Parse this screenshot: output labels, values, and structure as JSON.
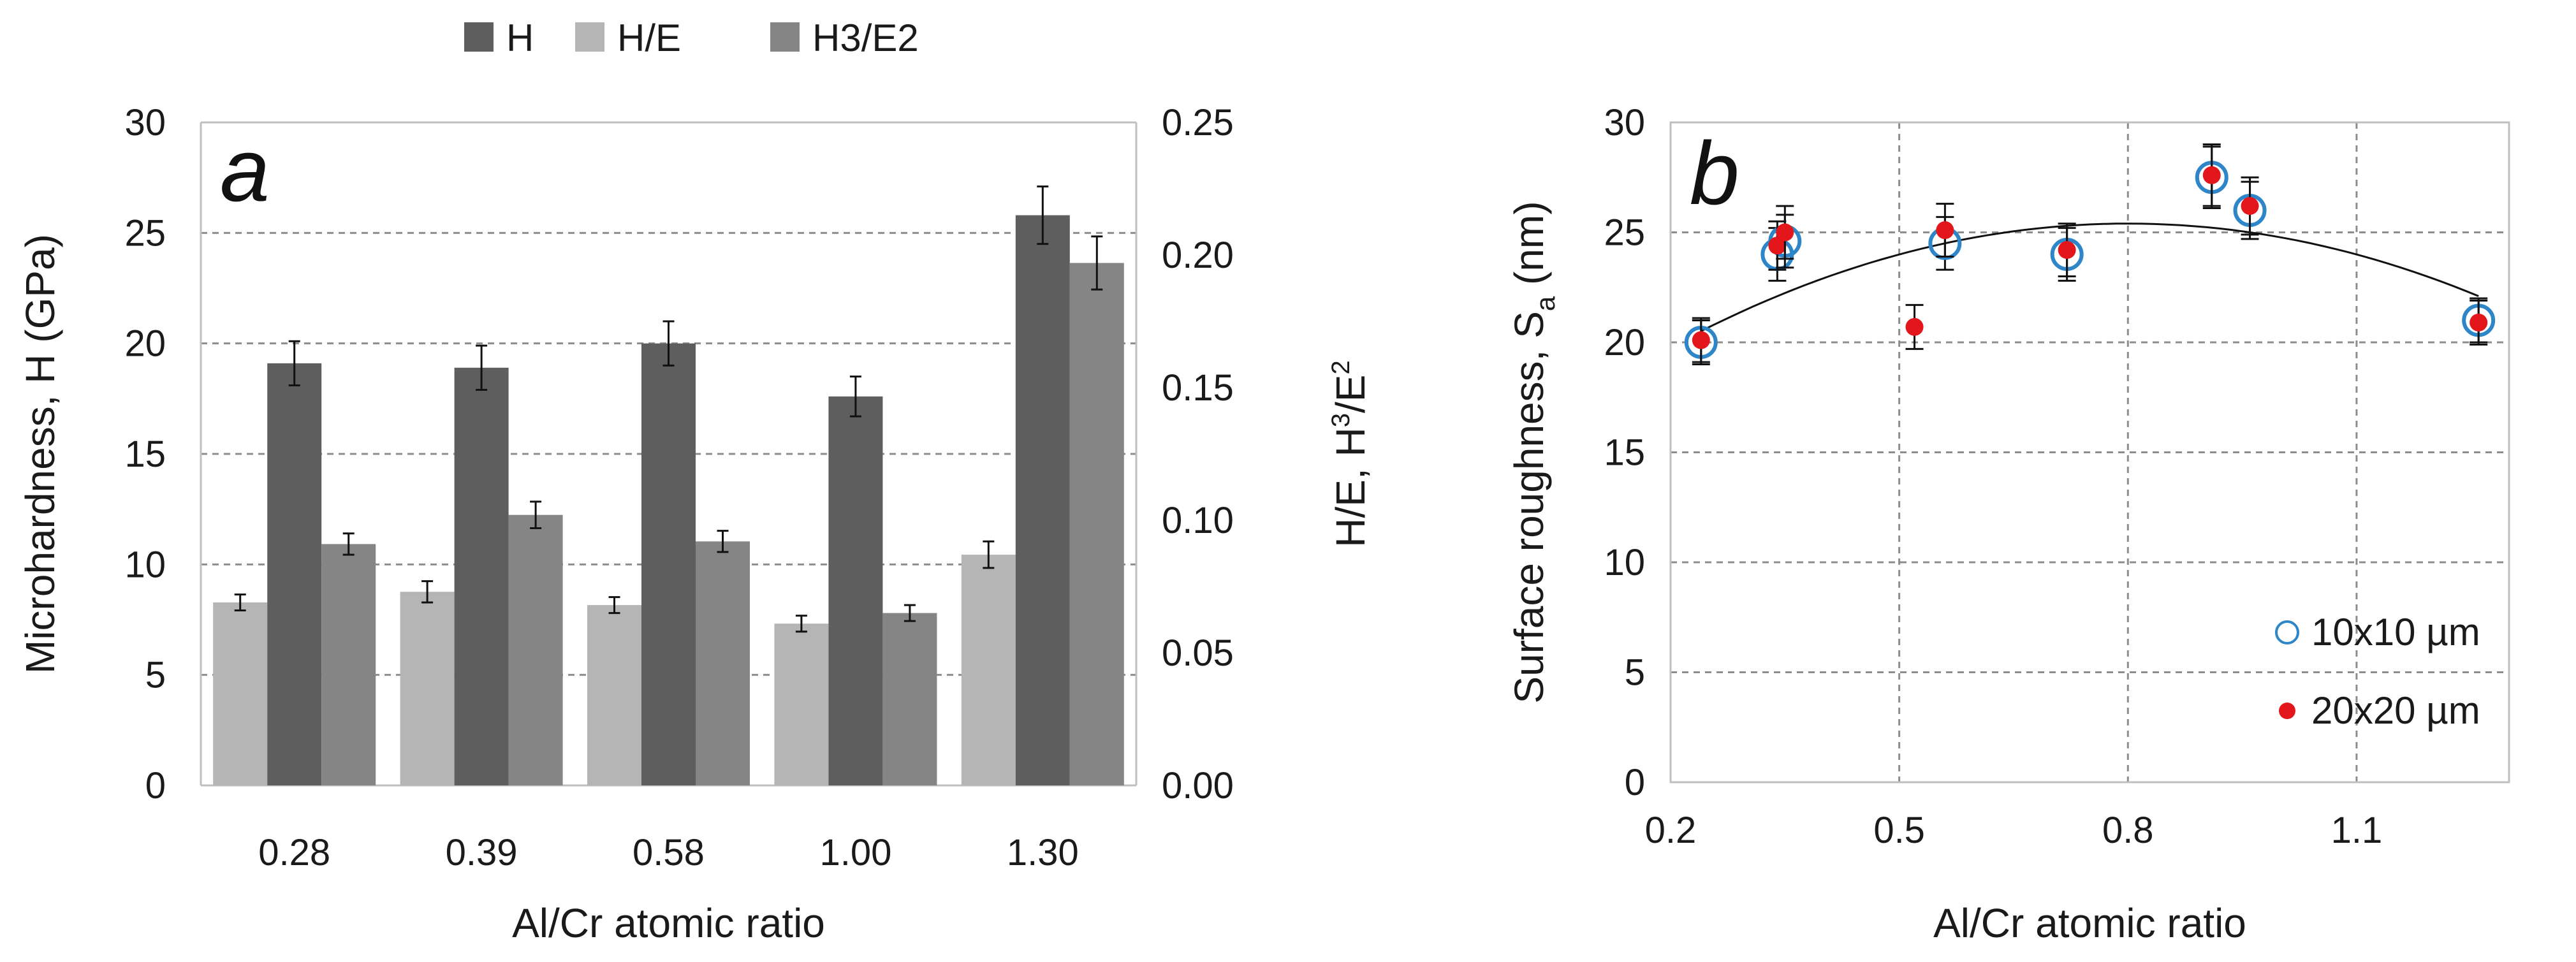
{
  "chart_data": [
    {
      "panel_label": "a",
      "type": "bar",
      "xlabel": "Al/Cr atomic ratio",
      "ylabel": "Microhardness, H (GPa)",
      "y2label_parts": [
        "H/E, H",
        "3",
        "/E",
        "2"
      ],
      "categories": [
        "0.28",
        "0.39",
        "0.58",
        "1.00",
        "1.30"
      ],
      "ylim": [
        0,
        30
      ],
      "yticks": [
        "0",
        "5",
        "10",
        "15",
        "20",
        "25",
        "30"
      ],
      "y2lim": [
        0,
        0.25
      ],
      "y2ticks": [
        "0.00",
        "0.05",
        "0.10",
        "0.15",
        "0.20",
        "0.25"
      ],
      "series": [
        {
          "name": "H/E",
          "axis": "right",
          "color": "#b5b5b5",
          "values": [
            0.069,
            0.073,
            0.068,
            0.061,
            0.087
          ],
          "errors": [
            0.003,
            0.004,
            0.003,
            0.003,
            0.005
          ]
        },
        {
          "name": "H",
          "axis": "left",
          "color": "#5e5e5e",
          "values": [
            19.1,
            18.9,
            20.0,
            17.6,
            25.8
          ],
          "errors": [
            1.0,
            1.0,
            1.0,
            0.9,
            1.3
          ]
        },
        {
          "name": "H3/E2",
          "axis": "right",
          "color": "#858585",
          "values": [
            0.091,
            0.102,
            0.092,
            0.065,
            0.197
          ],
          "errors": [
            0.004,
            0.005,
            0.004,
            0.003,
            0.01
          ]
        }
      ],
      "legend_order": [
        "H",
        "H/E",
        "H3/E2"
      ],
      "legend_position": "top-center"
    },
    {
      "panel_label": "b",
      "type": "scatter",
      "xlabel": "Al/Cr atomic ratio",
      "ylabel_parts": [
        "Surface roughness, S",
        "a",
        " (nm)"
      ],
      "xlim": [
        0.2,
        1.3
      ],
      "xticks": [
        0.2,
        0.5,
        0.8,
        1.1
      ],
      "xtick_labels": [
        "0.2",
        "0.5",
        "0.8",
        "1.1"
      ],
      "ylim": [
        0,
        30
      ],
      "yticks": [
        "0",
        "5",
        "10",
        "15",
        "20",
        "25",
        "30"
      ],
      "series": [
        {
          "name": "10x10 µm",
          "marker": "open-circle",
          "color": "#2e86c8",
          "x": [
            0.24,
            0.34,
            0.35,
            0.56,
            0.72,
            0.91,
            0.96,
            1.26
          ],
          "y": [
            20.0,
            24.0,
            24.6,
            24.5,
            24.0,
            27.5,
            26.0,
            21.0
          ],
          "errors": [
            1.0,
            1.2,
            1.2,
            1.2,
            1.2,
            1.4,
            1.3,
            1.0
          ]
        },
        {
          "name": "20x20 µm",
          "marker": "filled-circle",
          "color": "#e3161b",
          "x": [
            0.24,
            0.34,
            0.35,
            0.52,
            0.56,
            0.72,
            0.91,
            0.96,
            1.26
          ],
          "y": [
            20.1,
            24.4,
            25.0,
            20.7,
            25.1,
            24.2,
            27.6,
            26.2,
            20.9
          ],
          "errors": [
            1.0,
            1.1,
            1.2,
            1.0,
            1.2,
            1.2,
            1.4,
            1.3,
            1.0
          ]
        }
      ],
      "trendline": {
        "type": "polynomial-2",
        "x_range": [
          0.24,
          1.26
        ],
        "vertex_x": 0.8,
        "vertex_y": 25.4,
        "y_at_xmax": 22.1
      },
      "legend_position": "bottom-right"
    }
  ]
}
